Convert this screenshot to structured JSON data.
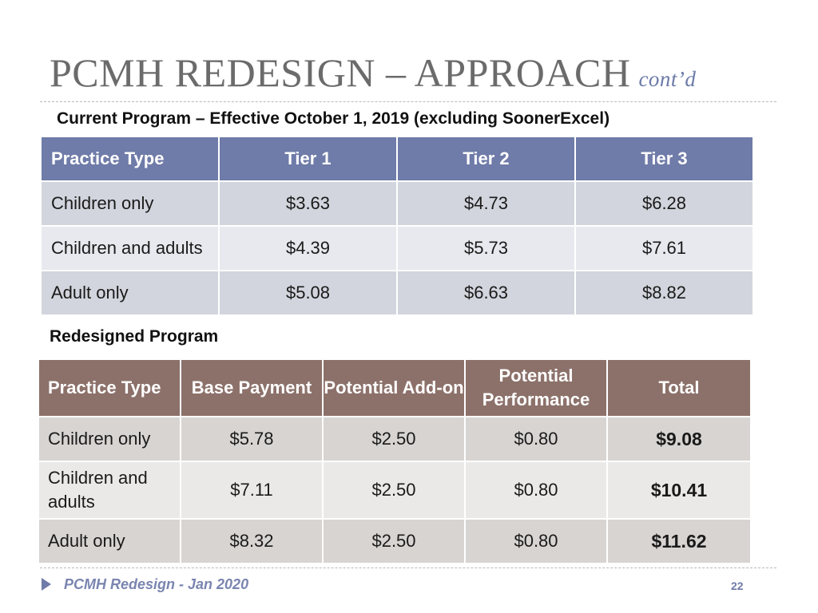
{
  "slide": {
    "title": "PCMH REDESIGN – APPROACH",
    "title_suffix": "cont’d",
    "footer_text": "PCMH Redesign - Jan 2020",
    "page_number": "22"
  },
  "current_program": {
    "heading": "Current Program – Effective October 1, 2019 (excluding SoonerExcel)",
    "columns": [
      "Practice Type",
      "Tier 1",
      "Tier 2",
      "Tier 3"
    ],
    "rows": [
      [
        "Children only",
        "$3.63",
        "$4.73",
        "$6.28"
      ],
      [
        "Children and adults",
        "$4.39",
        "$5.73",
        "$7.61"
      ],
      [
        "Adult only",
        "$5.08",
        "$6.63",
        "$8.82"
      ]
    ]
  },
  "redesigned_program": {
    "heading": "Redesigned Program",
    "columns": [
      "Practice Type",
      "Base Payment",
      "Potential Add-on",
      "Potential Performance",
      "Total"
    ],
    "rows": [
      [
        "Children only",
        "$5.78",
        "$2.50",
        "$0.80",
        "$9.08"
      ],
      [
        "Children and adults",
        "$7.11",
        "$2.50",
        "$0.80",
        "$10.41"
      ],
      [
        "Adult only",
        "$8.32",
        "$2.50",
        "$0.80",
        "$11.62"
      ]
    ]
  },
  "colors": {
    "current_header": "#6f7ba8",
    "redesign_header": "#8c716a",
    "title_text": "#6b6b6b"
  }
}
